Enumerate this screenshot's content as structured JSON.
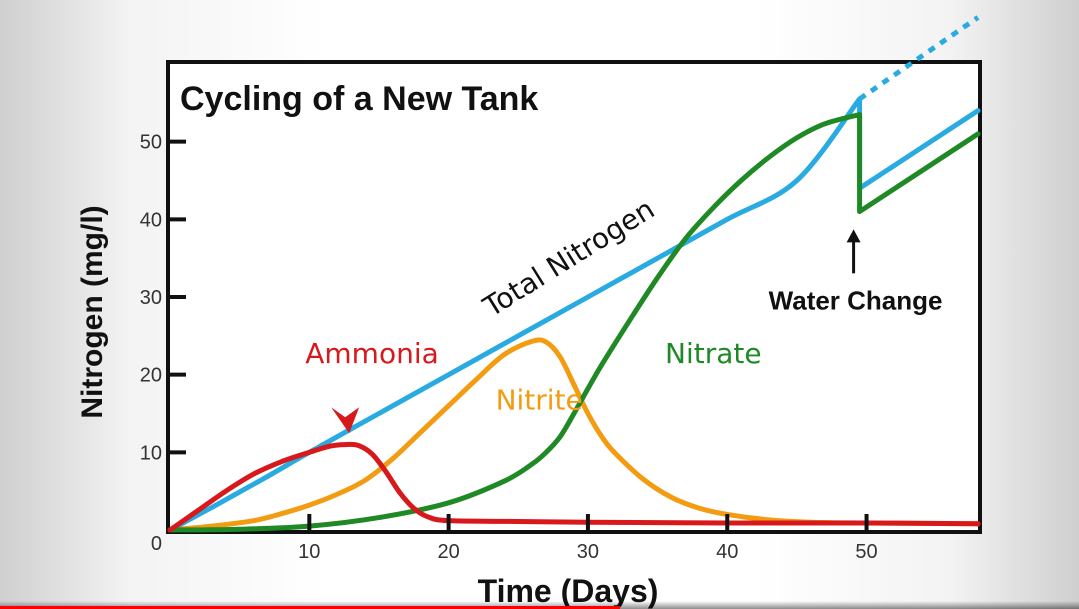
{
  "chart_data": {
    "type": "line",
    "title": "Cycling of a New Tank",
    "xlabel": "Time (Days)",
    "ylabel": "Nitrogen (mg/l)",
    "xlim": [
      0,
      58
    ],
    "ylim": [
      0,
      60
    ],
    "xticks": [
      10,
      20,
      30,
      40,
      50
    ],
    "yticks": [
      10,
      20,
      30,
      40,
      50
    ],
    "origin_label": "0",
    "grid": false,
    "series": [
      {
        "name": "Total Nitrogen",
        "color": "#29abe2",
        "points": [
          [
            0,
            0
          ],
          [
            3,
            2.9
          ],
          [
            5,
            4.9
          ],
          [
            7,
            6.9
          ],
          [
            10,
            10
          ],
          [
            15,
            15
          ],
          [
            20,
            20
          ],
          [
            25,
            25
          ],
          [
            30,
            30
          ],
          [
            35,
            35
          ],
          [
            40,
            40
          ],
          [
            45,
            45
          ],
          [
            49.5,
            55.5
          ],
          [
            49.5,
            44
          ],
          [
            58,
            54
          ]
        ],
        "dashed_extension": [
          [
            49.5,
            55.5
          ],
          [
            58,
            66
          ]
        ]
      },
      {
        "name": "Ammonia",
        "color": "#d7191c",
        "points": [
          [
            0,
            0
          ],
          [
            2,
            2.5
          ],
          [
            4,
            5
          ],
          [
            6,
            7.2
          ],
          [
            8,
            8.8
          ],
          [
            10,
            10
          ],
          [
            11.5,
            10.8
          ],
          [
            12.5,
            11
          ],
          [
            13.5,
            10.9
          ],
          [
            14.5,
            9.8
          ],
          [
            15.5,
            7.5
          ],
          [
            16.5,
            4.8
          ],
          [
            17.5,
            2.8
          ],
          [
            18.5,
            1.7
          ],
          [
            20,
            1.2
          ],
          [
            25,
            1.1
          ],
          [
            30,
            1
          ],
          [
            40,
            0.9
          ],
          [
            50,
            0.9
          ],
          [
            58,
            0.8
          ]
        ]
      },
      {
        "name": "Nitrite",
        "color": "#f39c12",
        "points": [
          [
            0,
            0
          ],
          [
            3,
            0.5
          ],
          [
            6,
            1.2
          ],
          [
            8,
            2.1
          ],
          [
            10,
            3.2
          ],
          [
            12,
            4.6
          ],
          [
            14,
            6.4
          ],
          [
            16,
            9.2
          ],
          [
            18,
            12.6
          ],
          [
            20,
            16
          ],
          [
            22,
            19.4
          ],
          [
            24,
            22.6
          ],
          [
            26,
            24.3
          ],
          [
            27,
            24.2
          ],
          [
            28,
            22.3
          ],
          [
            29,
            18.7
          ],
          [
            30,
            15
          ],
          [
            31,
            12
          ],
          [
            32,
            9.8
          ],
          [
            34,
            6.5
          ],
          [
            36,
            4.2
          ],
          [
            38,
            2.8
          ],
          [
            40,
            2
          ],
          [
            43,
            1.3
          ],
          [
            46,
            1
          ],
          [
            50,
            0.9
          ],
          [
            58,
            0.8
          ]
        ]
      },
      {
        "name": "Nitrate",
        "color": "#1f8a25",
        "points": [
          [
            0,
            0
          ],
          [
            5,
            0.1
          ],
          [
            10,
            0.5
          ],
          [
            15,
            1.6
          ],
          [
            20,
            3.5
          ],
          [
            24,
            6.3
          ],
          [
            26,
            8.5
          ],
          [
            27,
            10
          ],
          [
            28,
            12
          ],
          [
            29,
            15
          ],
          [
            30,
            18.2
          ],
          [
            31,
            21.3
          ],
          [
            33,
            27
          ],
          [
            35,
            32.5
          ],
          [
            37,
            37.5
          ],
          [
            39,
            41.5
          ],
          [
            41,
            45
          ],
          [
            43,
            48
          ],
          [
            45,
            50.5
          ],
          [
            47,
            52.3
          ],
          [
            49.5,
            53.5
          ],
          [
            49.5,
            41
          ],
          [
            58,
            51
          ]
        ]
      }
    ],
    "labels": [
      {
        "text": "Ammonia",
        "color": "#d7191c",
        "x": 14.5,
        "y": 21.5,
        "angle": 0
      },
      {
        "text": "Nitrite",
        "color": "#f39c12",
        "x": 26.5,
        "y": 15.5,
        "angle": 0
      },
      {
        "text": "Nitrate",
        "color": "#1f8a25",
        "x": 39,
        "y": 21.5,
        "angle": 0
      },
      {
        "text": "Total Nitrogen",
        "color": "#111111",
        "x": 29,
        "y": 34,
        "angle": -32
      }
    ],
    "annotations": [
      {
        "text": "Water Change",
        "target_x": 49.5,
        "target_y": 40,
        "color": "#111111"
      }
    ],
    "arrow_marker": {
      "color": "#d7191c",
      "x": 12,
      "y": 14
    }
  }
}
